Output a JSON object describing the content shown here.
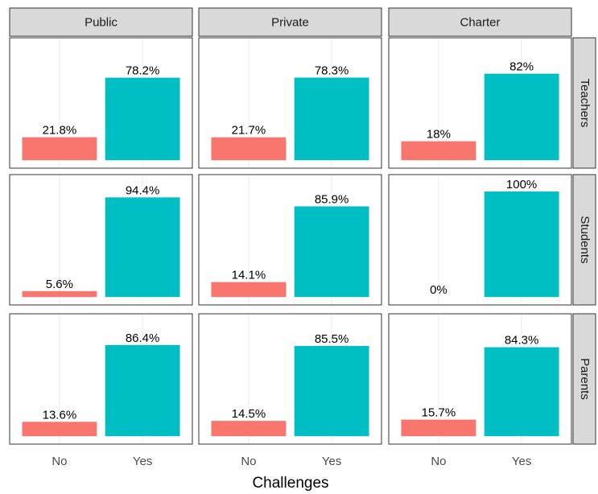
{
  "chart_data": {
    "type": "bar",
    "x_label": "Challenges",
    "categories": [
      "No",
      "Yes"
    ],
    "columns": [
      "Public",
      "Private",
      "Charter"
    ],
    "rows": [
      "Teachers",
      "Students",
      "Parents"
    ],
    "colors": [
      "#f8766d",
      "#00bfc4"
    ],
    "ylim": [
      -7.5,
      116
    ],
    "panels": [
      [
        {
          "values": [
            21.8,
            78.2
          ],
          "value_labels": [
            "21.8%",
            "78.2%"
          ]
        },
        {
          "values": [
            21.7,
            78.3
          ],
          "value_labels": [
            "21.7%",
            "78.3%"
          ]
        },
        {
          "values": [
            18,
            82
          ],
          "value_labels": [
            "18%",
            "82%"
          ]
        }
      ],
      [
        {
          "values": [
            5.6,
            94.4
          ],
          "value_labels": [
            "5.6%",
            "94.4%"
          ]
        },
        {
          "values": [
            14.1,
            85.9
          ],
          "value_labels": [
            "14.1%",
            "85.9%"
          ]
        },
        {
          "values": [
            0,
            100
          ],
          "value_labels": [
            "0%",
            "100%"
          ]
        }
      ],
      [
        {
          "values": [
            13.6,
            86.4
          ],
          "value_labels": [
            "13.6%",
            "86.4%"
          ]
        },
        {
          "values": [
            14.5,
            85.5
          ],
          "value_labels": [
            "14.5%",
            "85.5%"
          ]
        },
        {
          "values": [
            15.7,
            84.3
          ],
          "value_labels": [
            "15.7%",
            "84.3%"
          ]
        }
      ]
    ]
  }
}
